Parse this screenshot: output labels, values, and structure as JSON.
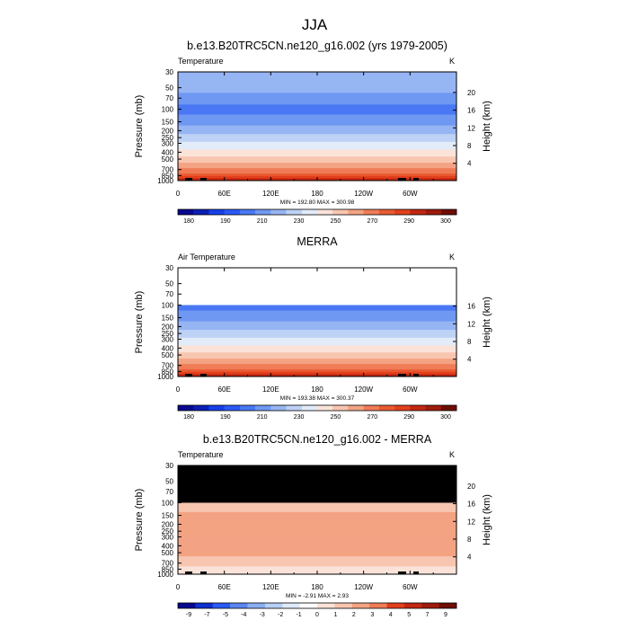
{
  "main_title": "JJA",
  "colors": {
    "levels": [
      "#08088f",
      "#0a1fb4",
      "#1540ea",
      "#2a5af6",
      "#4a78f4",
      "#6f98f2",
      "#96b5f3",
      "#bdd2f5",
      "#e2ebf8",
      "#fbe3d9",
      "#f8c6b0",
      "#f3a383",
      "#ef7c57",
      "#ea5a33",
      "#e2401d",
      "#c22712",
      "#9e1b0b",
      "#6e0d04"
    ],
    "diff_levels": [
      "#08088f",
      "#0f2fcf",
      "#2a5af6",
      "#5b86f2",
      "#8aaef2",
      "#b8cff5",
      "#deebfa",
      "#ffffff",
      "#fbe3d9",
      "#f8c6b0",
      "#f3a383",
      "#ef7c57",
      "#e2401d",
      "#c22712",
      "#9e1b0b",
      "#6e0d04"
    ],
    "missing": "#000000"
  },
  "chart_data": [
    {
      "type": "heatmap",
      "title": "b.e13.B20TRC5CN.ne120_g16.002 (yrs 1979-2005)",
      "left_label": "Temperature",
      "right_label": "K",
      "ylabel": "Pressure (mb)",
      "ylabel_right": "Height (km)",
      "yticks": [
        30,
        50,
        70,
        100,
        150,
        200,
        250,
        300,
        400,
        500,
        700,
        850,
        1000
      ],
      "ylim": [
        1000,
        30
      ],
      "yscale": "log",
      "xticks": [
        "0",
        "60E",
        "120E",
        "180",
        "120W",
        "60W"
      ],
      "right_ticks": [
        "4",
        "8",
        "12",
        "16",
        "20"
      ],
      "min_max": "MIN = 192.80  MAX = 300.98",
      "colorbar_labels": [
        "180",
        "190",
        "210",
        "230",
        "250",
        "270",
        "290",
        "300"
      ],
      "profile": [
        [
          30,
          220
        ],
        [
          50,
          214
        ],
        [
          70,
          206
        ],
        [
          100,
          196
        ],
        [
          150,
          206
        ],
        [
          200,
          216
        ],
        [
          250,
          224
        ],
        [
          300,
          232
        ],
        [
          400,
          244
        ],
        [
          500,
          254
        ],
        [
          700,
          272
        ],
        [
          850,
          284
        ],
        [
          1000,
          294
        ]
      ],
      "missing_above": null
    },
    {
      "type": "heatmap",
      "title": "MERRA",
      "left_label": "Air Temperature",
      "right_label": "K",
      "ylabel": "Pressure (mb)",
      "ylabel_right": "Height (km)",
      "yticks": [
        30,
        50,
        70,
        100,
        150,
        200,
        250,
        300,
        400,
        500,
        700,
        850,
        1000
      ],
      "ylim": [
        1000,
        30
      ],
      "yscale": "log",
      "xticks": [
        "0",
        "60E",
        "120E",
        "180",
        "120W",
        "60W"
      ],
      "right_ticks": [
        "4",
        "8",
        "12",
        "16"
      ],
      "min_max": "MIN = 193.38  MAX = 300.37",
      "colorbar_labels": [
        "180",
        "190",
        "210",
        "230",
        "250",
        "270",
        "290",
        "300"
      ],
      "profile": [
        [
          100,
          196
        ],
        [
          150,
          206
        ],
        [
          200,
          216
        ],
        [
          250,
          224
        ],
        [
          300,
          232
        ],
        [
          400,
          244
        ],
        [
          500,
          254
        ],
        [
          700,
          272
        ],
        [
          850,
          284
        ],
        [
          1000,
          294
        ]
      ],
      "missing_above": 100
    },
    {
      "type": "heatmap",
      "title": "b.e13.B20TRC5CN.ne120_g16.002 - MERRA",
      "left_label": "Temperature",
      "right_label": "K",
      "ylabel": "Pressure (mb)",
      "ylabel_right": "Height (km)",
      "yticks": [
        30,
        50,
        70,
        100,
        150,
        200,
        250,
        300,
        400,
        500,
        700,
        850,
        1000
      ],
      "ylim": [
        1000,
        30
      ],
      "yscale": "log",
      "xticks": [
        "0",
        "60E",
        "120E",
        "180",
        "120W",
        "60W"
      ],
      "right_ticks": [
        "4",
        "8",
        "12",
        "16",
        "20"
      ],
      "min_max": "MIN =  -2.91  MAX =   2.93",
      "colorbar_labels": [
        "-9",
        "-7",
        "-5",
        "-4",
        "-3",
        "-2",
        "-1",
        "0",
        "1",
        "2",
        "3",
        "4",
        "5",
        "7",
        "9"
      ],
      "profile": [
        [
          100,
          0.5
        ],
        [
          150,
          1.2
        ],
        [
          200,
          1.6
        ],
        [
          250,
          1.6
        ],
        [
          300,
          1.6
        ],
        [
          400,
          1.6
        ],
        [
          500,
          1.2
        ],
        [
          700,
          0.6
        ],
        [
          850,
          0.4
        ],
        [
          1000,
          0.4
        ]
      ],
      "missing_above": 100
    }
  ]
}
